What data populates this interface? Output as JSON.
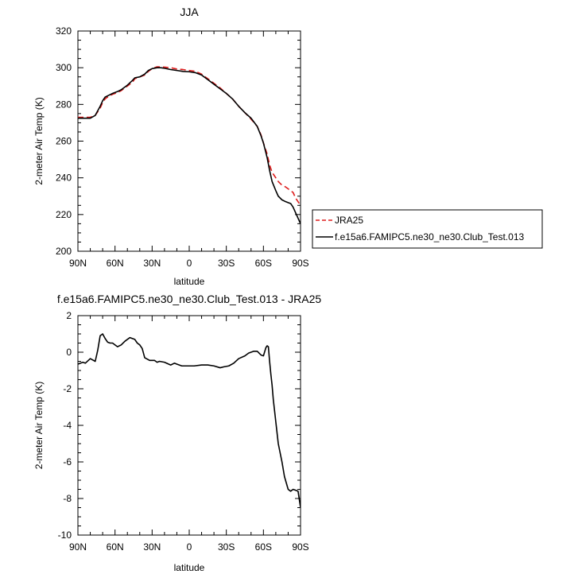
{
  "chart_data": [
    {
      "type": "line",
      "title": "JJA",
      "xlabel": "latitude",
      "ylabel": "2-meter Air Temp (K)",
      "xlim": [
        90,
        -90
      ],
      "ylim": [
        200,
        320
      ],
      "x_ticks": [
        90,
        60,
        30,
        0,
        -30,
        -60,
        -90
      ],
      "x_tick_labels": [
        "90N",
        "60N",
        "30N",
        "0",
        "30S",
        "60S",
        "90S"
      ],
      "y_ticks": [
        200,
        220,
        240,
        260,
        280,
        300,
        320
      ],
      "y_tick_labels": [
        "200",
        "220",
        "240",
        "260",
        "280",
        "300",
        "320"
      ],
      "legend_position": "right",
      "series": [
        {
          "name": "JRA25",
          "color": "#dd1c1c",
          "dash": "dashed",
          "x": [
            90,
            84,
            80,
            76,
            72,
            70,
            68,
            65,
            62,
            58,
            55,
            50,
            46,
            44,
            40,
            36,
            33,
            30,
            26,
            23,
            20,
            15,
            10,
            5,
            0,
            -5,
            -10,
            -15,
            -20,
            -25,
            -30,
            -35,
            -40,
            -45,
            -50,
            -55,
            -58,
            -60,
            -63,
            -65,
            -67,
            -70,
            -72,
            -75,
            -78,
            -80,
            -82,
            -84,
            -86,
            -88,
            -90
          ],
          "y": [
            273,
            273,
            273,
            274,
            278,
            281,
            283,
            284.5,
            285.5,
            286.5,
            287.5,
            290,
            292,
            294,
            295,
            296,
            298,
            299.5,
            300.5,
            300.5,
            300.3,
            300,
            299.3,
            299,
            298.5,
            298,
            296.5,
            294,
            291.5,
            289,
            286,
            283,
            279,
            275.5,
            272,
            268,
            263.5,
            259,
            253,
            247,
            243,
            240,
            238,
            236,
            235,
            234,
            233,
            232,
            229,
            227,
            225
          ]
        },
        {
          "name": "f.e15a6.FAMIPC5.ne30_ne30.Club_Test.013",
          "color": "#000000",
          "dash": "solid",
          "x": [
            90,
            84,
            80,
            76,
            72,
            70,
            68,
            65,
            62,
            58,
            55,
            50,
            46,
            44,
            40,
            36,
            33,
            30,
            26,
            23,
            20,
            15,
            10,
            5,
            0,
            -5,
            -10,
            -15,
            -20,
            -25,
            -30,
            -35,
            -40,
            -45,
            -50,
            -55,
            -58,
            -60,
            -63,
            -65,
            -67,
            -70,
            -72,
            -75,
            -78,
            -80,
            -82,
            -84,
            -86,
            -88,
            -90
          ],
          "y": [
            272.5,
            272.5,
            272.5,
            274,
            279,
            282,
            284,
            285,
            286,
            287,
            288,
            290.5,
            293,
            294.5,
            295,
            296.5,
            298.5,
            299.5,
            300,
            300,
            299.7,
            299,
            298.5,
            298,
            297.8,
            297.3,
            296,
            293.5,
            291,
            288.5,
            286,
            283,
            279,
            275.5,
            272.5,
            268,
            263,
            259,
            251,
            244,
            238,
            233,
            230,
            228,
            227,
            226.5,
            226,
            224,
            221,
            218,
            215
          ]
        }
      ]
    },
    {
      "type": "line",
      "title": "f.e15a6.FAMIPC5.ne30_ne30.Club_Test.013 - JRA25",
      "xlabel": "latitude",
      "ylabel": "2-meter Air Temp (K)",
      "xlim": [
        90,
        -90
      ],
      "ylim": [
        -10,
        2
      ],
      "x_ticks": [
        90,
        60,
        30,
        0,
        -30,
        -60,
        -90
      ],
      "x_tick_labels": [
        "90N",
        "60N",
        "30N",
        "0",
        "30S",
        "60S",
        "90S"
      ],
      "y_ticks": [
        -10,
        -8,
        -6,
        -4,
        -2,
        0,
        2
      ],
      "y_tick_labels": [
        "-10",
        "-8",
        "-6",
        "-4",
        "-2",
        "0",
        "2"
      ],
      "series": [
        {
          "color": "#000000",
          "dash": "solid",
          "x": [
            90,
            86,
            84,
            80,
            76,
            74,
            72,
            70,
            68,
            66,
            64,
            62,
            58,
            55,
            52,
            48,
            44,
            42,
            40,
            38,
            36,
            32,
            28,
            26,
            24,
            20,
            15,
            12,
            10,
            6,
            4,
            0,
            -4,
            -10,
            -15,
            -20,
            -25,
            -28,
            -32,
            -36,
            -40,
            -45,
            -48,
            -52,
            -55,
            -58,
            -60,
            -62,
            -63,
            -64,
            -65,
            -66,
            -67,
            -68,
            -70,
            -72,
            -75,
            -77,
            -80,
            -82,
            -84,
            -86,
            -88,
            -90
          ],
          "y": [
            -0.65,
            -0.55,
            -0.6,
            -0.35,
            -0.5,
            0.1,
            0.9,
            1.0,
            0.75,
            0.55,
            0.5,
            0.5,
            0.3,
            0.4,
            0.6,
            0.8,
            0.7,
            0.5,
            0.4,
            0.2,
            -0.3,
            -0.45,
            -0.45,
            -0.55,
            -0.5,
            -0.55,
            -0.7,
            -0.6,
            -0.65,
            -0.75,
            -0.75,
            -0.75,
            -0.75,
            -0.7,
            -0.7,
            -0.75,
            -0.85,
            -0.8,
            -0.75,
            -0.6,
            -0.35,
            -0.2,
            -0.05,
            0.05,
            0.05,
            -0.15,
            -0.2,
            0.25,
            0.35,
            0.3,
            -0.5,
            -1.2,
            -1.8,
            -2.6,
            -3.8,
            -5.0,
            -6.0,
            -6.8,
            -7.5,
            -7.6,
            -7.5,
            -7.55,
            -7.6,
            -8.5
          ]
        }
      ]
    }
  ]
}
